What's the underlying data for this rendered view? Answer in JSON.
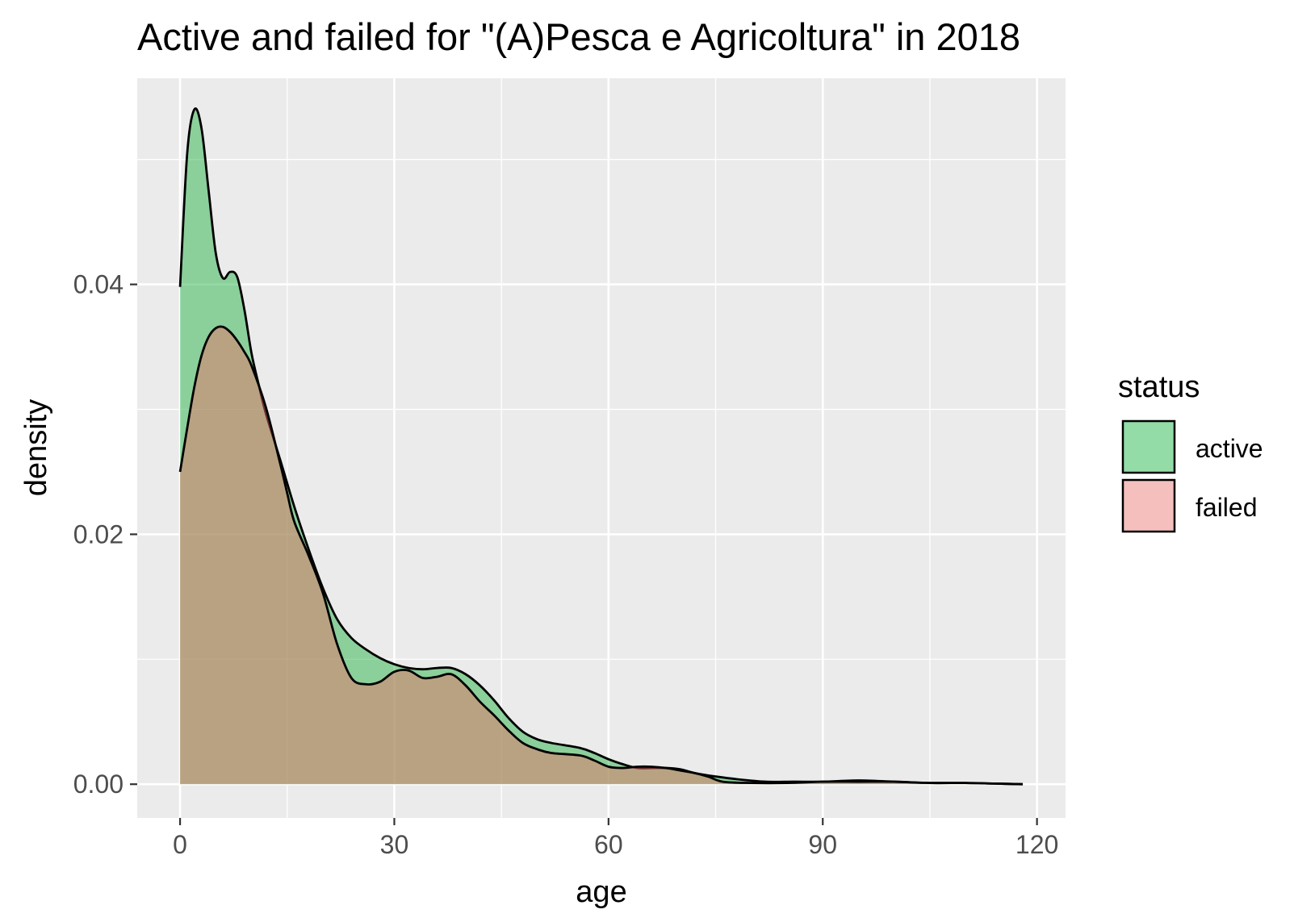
{
  "chart_data": {
    "type": "area",
    "title": "Active and failed for \"(A)Pesca e Agricoltura\" in 2018",
    "xlabel": "age",
    "ylabel": "density",
    "xlim": [
      -6,
      124
    ],
    "ylim": [
      -0.0027,
      0.0565
    ],
    "x_ticks": [
      0,
      30,
      60,
      90,
      120
    ],
    "x_tick_labels": [
      "0",
      "30",
      "60",
      "90",
      "120"
    ],
    "y_ticks": [
      0,
      0.02,
      0.04
    ],
    "y_tick_labels": [
      "0.00",
      "0.02",
      "0.04"
    ],
    "grid": true,
    "legend": {
      "title": "status",
      "position": "right",
      "entries": [
        {
          "label": "active",
          "color": "#93dba7"
        },
        {
          "label": "failed",
          "color": "#f4bfbd"
        }
      ]
    },
    "series": [
      {
        "name": "active",
        "fill": "#2bb34b",
        "fill_opacity": 0.5,
        "points": [
          [
            0,
            0.0398
          ],
          [
            1,
            0.0505
          ],
          [
            2,
            0.054
          ],
          [
            3,
            0.0525
          ],
          [
            4,
            0.0475
          ],
          [
            5,
            0.0425
          ],
          [
            6,
            0.0405
          ],
          [
            7,
            0.041
          ],
          [
            8,
            0.0406
          ],
          [
            9,
            0.038
          ],
          [
            10,
            0.0345
          ],
          [
            11,
            0.032
          ],
          [
            12,
            0.0297
          ],
          [
            14,
            0.026
          ],
          [
            16,
            0.0222
          ],
          [
            18,
            0.0188
          ],
          [
            20,
            0.0157
          ],
          [
            22,
            0.0132
          ],
          [
            24,
            0.0117
          ],
          [
            26,
            0.0108
          ],
          [
            28,
            0.0101
          ],
          [
            30,
            0.0096
          ],
          [
            32,
            0.0093
          ],
          [
            34,
            0.0092
          ],
          [
            36,
            0.0093
          ],
          [
            38,
            0.0093
          ],
          [
            40,
            0.0088
          ],
          [
            42,
            0.0079
          ],
          [
            44,
            0.0067
          ],
          [
            46,
            0.0053
          ],
          [
            48,
            0.0042
          ],
          [
            50,
            0.0036
          ],
          [
            52,
            0.0033
          ],
          [
            56,
            0.0029
          ],
          [
            58,
            0.0025
          ],
          [
            60,
            0.002
          ],
          [
            62,
            0.0016
          ],
          [
            64,
            0.0013
          ],
          [
            66,
            0.0013
          ],
          [
            68,
            0.0013
          ],
          [
            70,
            0.0012
          ],
          [
            72,
            0.0009
          ],
          [
            74,
            0.0007
          ],
          [
            78,
            0.0004
          ],
          [
            82,
            0.0002
          ],
          [
            86,
            0.0002
          ],
          [
            90,
            0.0002
          ],
          [
            95,
            0.0003
          ],
          [
            100,
            0.0002
          ],
          [
            105,
            0.0001
          ],
          [
            110,
            0.0001
          ],
          [
            114,
            5e-05
          ],
          [
            118,
            0
          ]
        ]
      },
      {
        "name": "failed",
        "fill": "#f06a64",
        "fill_opacity": 0.45,
        "points": [
          [
            0,
            0.025
          ],
          [
            1,
            0.0285
          ],
          [
            2,
            0.0318
          ],
          [
            3,
            0.0343
          ],
          [
            4,
            0.0358
          ],
          [
            5,
            0.0365
          ],
          [
            6,
            0.0366
          ],
          [
            7,
            0.0362
          ],
          [
            8,
            0.0355
          ],
          [
            9,
            0.0346
          ],
          [
            10,
            0.0335
          ],
          [
            12,
            0.0302
          ],
          [
            14,
            0.0257
          ],
          [
            15,
            0.0233
          ],
          [
            16,
            0.021
          ],
          [
            18,
            0.0183
          ],
          [
            20,
            0.0153
          ],
          [
            22,
            0.0112
          ],
          [
            24,
            0.0085
          ],
          [
            26,
            0.008
          ],
          [
            28,
            0.0082
          ],
          [
            30,
            0.009
          ],
          [
            32,
            0.0091
          ],
          [
            34,
            0.0085
          ],
          [
            36,
            0.0086
          ],
          [
            38,
            0.0088
          ],
          [
            40,
            0.0079
          ],
          [
            42,
            0.0066
          ],
          [
            44,
            0.0055
          ],
          [
            46,
            0.0043
          ],
          [
            48,
            0.0033
          ],
          [
            50,
            0.0028
          ],
          [
            52,
            0.0025
          ],
          [
            56,
            0.0023
          ],
          [
            58,
            0.0019
          ],
          [
            60,
            0.0014
          ],
          [
            62,
            0.0013
          ],
          [
            64,
            0.0014
          ],
          [
            66,
            0.0014
          ],
          [
            68,
            0.0013
          ],
          [
            70,
            0.0011
          ],
          [
            72,
            0.0009
          ],
          [
            74,
            0.0006
          ],
          [
            76,
            0.0002
          ],
          [
            80,
            0.0001
          ],
          [
            85,
            0.0001
          ],
          [
            90,
            0.0002
          ],
          [
            95,
            0.0002
          ],
          [
            100,
            0.0002
          ],
          [
            105,
            0.0001
          ],
          [
            110,
            0.0001
          ],
          [
            114,
            5e-05
          ],
          [
            118,
            0
          ]
        ]
      }
    ]
  }
}
